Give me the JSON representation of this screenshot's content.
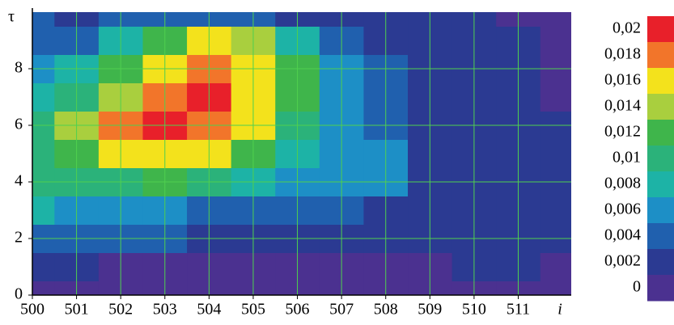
{
  "chart_data": {
    "type": "contour",
    "x_label": "i",
    "y_label": "τ",
    "xlim": [
      500,
      512.2
    ],
    "ylim": [
      0,
      10
    ],
    "xticks": [
      500,
      501,
      502,
      503,
      504,
      505,
      506,
      507,
      508,
      509,
      510,
      511
    ],
    "yticks": [
      0,
      2,
      4,
      6,
      8
    ],
    "grid": true,
    "grid_color": "#4fd04f",
    "x": [
      500,
      501,
      502,
      503,
      504,
      505,
      506,
      507,
      508,
      509,
      510,
      511,
      512
    ],
    "y": [
      0,
      1,
      2,
      3,
      4,
      5,
      6,
      7,
      8,
      9,
      10
    ],
    "z": [
      [
        0.001,
        0.001,
        0.0005,
        0.0005,
        0.0005,
        0.0005,
        0.0005,
        0.0005,
        0.0005,
        0.0005,
        0.0005,
        0.0005,
        0.0005
      ],
      [
        0.002,
        0.002,
        0.001,
        0.001,
        0.001,
        0.001,
        0.001,
        0.001,
        0.001,
        0.001,
        0.002,
        0.002,
        0.001
      ],
      [
        0.005,
        0.004,
        0.004,
        0.004,
        0.003,
        0.003,
        0.003,
        0.003,
        0.003,
        0.003,
        0.003,
        0.003,
        0.003
      ],
      [
        0.008,
        0.006,
        0.006,
        0.006,
        0.005,
        0.005,
        0.005,
        0.004,
        0.003,
        0.003,
        0.003,
        0.003,
        0.003
      ],
      [
        0.01,
        0.011,
        0.011,
        0.012,
        0.01,
        0.008,
        0.007,
        0.007,
        0.006,
        0.003,
        0.003,
        0.003,
        0.003
      ],
      [
        0.011,
        0.013,
        0.016,
        0.017,
        0.016,
        0.012,
        0.009,
        0.007,
        0.007,
        0.003,
        0.003,
        0.003,
        0.003
      ],
      [
        0.01,
        0.014,
        0.018,
        0.021,
        0.019,
        0.016,
        0.01,
        0.006,
        0.005,
        0.003,
        0.003,
        0.003,
        0.002
      ],
      [
        0.009,
        0.011,
        0.014,
        0.018,
        0.021,
        0.017,
        0.012,
        0.007,
        0.004,
        0.003,
        0.003,
        0.003,
        0.001
      ],
      [
        0.007,
        0.009,
        0.012,
        0.017,
        0.019,
        0.017,
        0.013,
        0.007,
        0.004,
        0.003,
        0.003,
        0.003,
        0.001
      ],
      [
        0.005,
        0.005,
        0.008,
        0.012,
        0.017,
        0.014,
        0.008,
        0.004,
        0.003,
        0.003,
        0.003,
        0.002,
        0.001
      ],
      [
        0.004,
        0.003,
        0.004,
        0.005,
        0.005,
        0.004,
        0.003,
        0.002,
        0.002,
        0.002,
        0.002,
        0.001,
        0.001
      ]
    ],
    "colorbar": {
      "ticks": [
        {
          "value": 0.02,
          "label": "0,02"
        },
        {
          "value": 0.018,
          "label": "0,018"
        },
        {
          "value": 0.016,
          "label": "0,016"
        },
        {
          "value": 0.014,
          "label": "0,014"
        },
        {
          "value": 0.012,
          "label": "0,012"
        },
        {
          "value": 0.01,
          "label": "0,01"
        },
        {
          "value": 0.008,
          "label": "0,008"
        },
        {
          "value": 0.006,
          "label": "0,006"
        },
        {
          "value": 0.004,
          "label": "0,004"
        },
        {
          "value": 0.002,
          "label": "0,002"
        },
        0
      ],
      "colors": [
        "#e8202a",
        "#f2752a",
        "#f3e21c",
        "#a9cf3e",
        "#3fb54b",
        "#2bb27a",
        "#1db3a6",
        "#1d8fc6",
        "#2060ae",
        "#2b3a92",
        "#4b3190"
      ]
    }
  }
}
